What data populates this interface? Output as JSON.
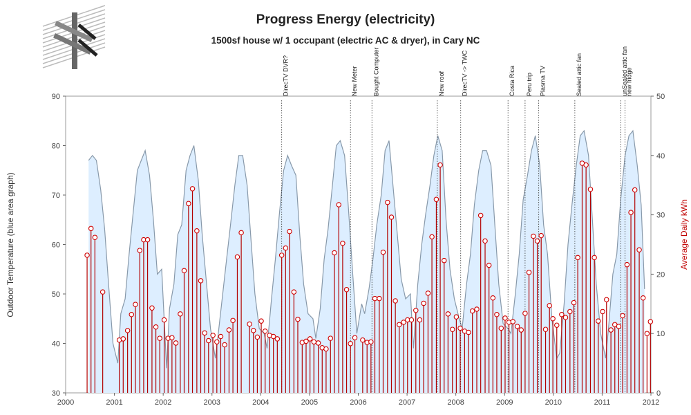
{
  "colors": {
    "temperature_fill": "#ddeeff",
    "temperature_line": "#8899aa",
    "kwh_stem": "#b30000",
    "kwh_marker": "#d00000",
    "axis": "#666666",
    "event_line": "#333333"
  },
  "chart_data": {
    "type": "area+stem",
    "title": "Progress Energy (electricity)",
    "subtitle": "1500sf house w/ 1 occupant (electric AC & dryer), in Cary NC",
    "xlabel": "",
    "ylabel_left": "Outdoor Temperature (blue area graph)",
    "ylabel_right": "Average Daily kWh",
    "xlim": [
      2000,
      2012
    ],
    "ylim_left": [
      30,
      90
    ],
    "ylim_right": [
      0,
      50
    ],
    "x_ticks": [
      "2000",
      "2001",
      "2002",
      "2003",
      "2004",
      "2005",
      "2006",
      "2007",
      "2008",
      "2009",
      "2010",
      "2011",
      "2012"
    ],
    "y_left_ticks": [
      "30",
      "40",
      "50",
      "60",
      "70",
      "80",
      "90"
    ],
    "y_right_ticks": [
      "0",
      "10",
      "20",
      "30",
      "40",
      "50"
    ],
    "grid": false,
    "series": [
      {
        "name": "Outdoor Temperature",
        "type": "area",
        "points": [
          [
            2000.47,
            77
          ],
          [
            2000.55,
            78
          ],
          [
            2000.63,
            77
          ],
          [
            2000.72,
            71
          ],
          [
            2000.8,
            63
          ],
          [
            2000.88,
            52
          ],
          [
            2000.97,
            40
          ],
          [
            2001.07,
            36
          ],
          [
            2001.13,
            46
          ],
          [
            2001.22,
            49
          ],
          [
            2001.3,
            58
          ],
          [
            2001.38,
            66
          ],
          [
            2001.47,
            75
          ],
          [
            2001.55,
            77
          ],
          [
            2001.63,
            79
          ],
          [
            2001.72,
            74
          ],
          [
            2001.8,
            65
          ],
          [
            2001.88,
            54
          ],
          [
            2001.97,
            55
          ],
          [
            2002.07,
            35
          ],
          [
            2002.13,
            47
          ],
          [
            2002.22,
            52
          ],
          [
            2002.3,
            62
          ],
          [
            2002.38,
            64
          ],
          [
            2002.47,
            75
          ],
          [
            2002.55,
            78
          ],
          [
            2002.63,
            80
          ],
          [
            2002.72,
            73
          ],
          [
            2002.8,
            62
          ],
          [
            2002.88,
            53
          ],
          [
            2002.97,
            43
          ],
          [
            2003.07,
            37
          ],
          [
            2003.13,
            42
          ],
          [
            2003.22,
            50
          ],
          [
            2003.3,
            57
          ],
          [
            2003.38,
            64
          ],
          [
            2003.47,
            72
          ],
          [
            2003.55,
            78
          ],
          [
            2003.63,
            78
          ],
          [
            2003.72,
            72
          ],
          [
            2003.8,
            61
          ],
          [
            2003.88,
            50
          ],
          [
            2003.97,
            43
          ],
          [
            2004.07,
            42
          ],
          [
            2004.13,
            39
          ],
          [
            2004.22,
            49
          ],
          [
            2004.3,
            57
          ],
          [
            2004.38,
            66
          ],
          [
            2004.47,
            75
          ],
          [
            2004.55,
            78
          ],
          [
            2004.63,
            76
          ],
          [
            2004.72,
            74
          ],
          [
            2004.8,
            62
          ],
          [
            2004.88,
            52
          ],
          [
            2004.97,
            46
          ],
          [
            2005.07,
            45
          ],
          [
            2005.13,
            41
          ],
          [
            2005.22,
            47
          ],
          [
            2005.3,
            57
          ],
          [
            2005.38,
            63
          ],
          [
            2005.47,
            72
          ],
          [
            2005.55,
            80
          ],
          [
            2005.63,
            81
          ],
          [
            2005.72,
            78
          ],
          [
            2005.8,
            67
          ],
          [
            2005.88,
            55
          ],
          [
            2005.97,
            42
          ],
          [
            2006.07,
            48
          ],
          [
            2006.13,
            46
          ],
          [
            2006.22,
            51
          ],
          [
            2006.3,
            57
          ],
          [
            2006.38,
            64
          ],
          [
            2006.47,
            70
          ],
          [
            2006.55,
            79
          ],
          [
            2006.63,
            81
          ],
          [
            2006.72,
            71
          ],
          [
            2006.8,
            62
          ],
          [
            2006.88,
            53
          ],
          [
            2006.97,
            49
          ],
          [
            2007.07,
            50
          ],
          [
            2007.13,
            39
          ],
          [
            2007.22,
            52
          ],
          [
            2007.3,
            60
          ],
          [
            2007.38,
            66
          ],
          [
            2007.47,
            72
          ],
          [
            2007.55,
            78
          ],
          [
            2007.63,
            82
          ],
          [
            2007.72,
            79
          ],
          [
            2007.8,
            65
          ],
          [
            2007.88,
            55
          ],
          [
            2007.97,
            49
          ],
          [
            2008.07,
            45
          ],
          [
            2008.13,
            43
          ],
          [
            2008.22,
            52
          ],
          [
            2008.3,
            58
          ],
          [
            2008.38,
            68
          ],
          [
            2008.47,
            75
          ],
          [
            2008.55,
            79
          ],
          [
            2008.63,
            79
          ],
          [
            2008.72,
            76
          ],
          [
            2008.8,
            64
          ],
          [
            2008.88,
            52
          ],
          [
            2008.97,
            44
          ],
          [
            2009.07,
            43
          ],
          [
            2009.13,
            42
          ],
          [
            2009.22,
            50
          ],
          [
            2009.3,
            58
          ],
          [
            2009.38,
            69
          ],
          [
            2009.47,
            74
          ],
          [
            2009.55,
            79
          ],
          [
            2009.63,
            82
          ],
          [
            2009.72,
            76
          ],
          [
            2009.8,
            64
          ],
          [
            2009.88,
            58
          ],
          [
            2009.97,
            45
          ],
          [
            2010.07,
            37
          ],
          [
            2010.13,
            38
          ],
          [
            2010.22,
            48
          ],
          [
            2010.3,
            60
          ],
          [
            2010.38,
            68
          ],
          [
            2010.47,
            76
          ],
          [
            2010.55,
            82
          ],
          [
            2010.63,
            83
          ],
          [
            2010.72,
            78
          ],
          [
            2010.8,
            65
          ],
          [
            2010.88,
            52
          ],
          [
            2010.97,
            42
          ],
          [
            2011.07,
            37
          ],
          [
            2011.13,
            43
          ],
          [
            2011.22,
            54
          ],
          [
            2011.3,
            58
          ],
          [
            2011.38,
            69
          ],
          [
            2011.47,
            78
          ],
          [
            2011.55,
            82
          ],
          [
            2011.63,
            83
          ],
          [
            2011.72,
            76
          ],
          [
            2011.8,
            68
          ],
          [
            2011.87,
            51
          ]
        ]
      },
      {
        "name": "Average Daily kWh",
        "type": "stem",
        "points": [
          [
            2000.44,
            23.2
          ],
          [
            2000.52,
            27.7
          ],
          [
            2000.6,
            26.2
          ],
          [
            2000.76,
            17
          ],
          [
            2001.1,
            8.9
          ],
          [
            2001.18,
            9.1
          ],
          [
            2001.27,
            10.5
          ],
          [
            2001.35,
            13.2
          ],
          [
            2001.43,
            14.9
          ],
          [
            2001.52,
            24.0
          ],
          [
            2001.6,
            25.8
          ],
          [
            2001.68,
            25.8
          ],
          [
            2001.77,
            14.3
          ],
          [
            2001.85,
            11.1
          ],
          [
            2001.93,
            9.2
          ],
          [
            2002.02,
            12.3
          ],
          [
            2002.1,
            9.2
          ],
          [
            2002.18,
            9.3
          ],
          [
            2002.26,
            8.4
          ],
          [
            2002.35,
            13.3
          ],
          [
            2002.43,
            20.6
          ],
          [
            2002.52,
            31.9
          ],
          [
            2002.6,
            34.4
          ],
          [
            2002.69,
            27.3
          ],
          [
            2002.77,
            18.9
          ],
          [
            2002.85,
            10.1
          ],
          [
            2002.93,
            8.8
          ],
          [
            2003.02,
            9.7
          ],
          [
            2003.1,
            8.6
          ],
          [
            2003.18,
            9.5
          ],
          [
            2003.26,
            8.1
          ],
          [
            2003.35,
            10.6
          ],
          [
            2003.43,
            12.2
          ],
          [
            2003.52,
            22.9
          ],
          [
            2003.6,
            27.0
          ],
          [
            2003.77,
            11.6
          ],
          [
            2003.85,
            10.5
          ],
          [
            2003.93,
            9.4
          ],
          [
            2004.01,
            12.1
          ],
          [
            2004.09,
            10.4
          ],
          [
            2004.18,
            9.7
          ],
          [
            2004.26,
            9.5
          ],
          [
            2004.34,
            9.1
          ],
          [
            2004.43,
            23.2
          ],
          [
            2004.51,
            24.4
          ],
          [
            2004.59,
            27.2
          ],
          [
            2004.68,
            17.0
          ],
          [
            2004.76,
            12.4
          ],
          [
            2004.85,
            8.5
          ],
          [
            2004.93,
            8.7
          ],
          [
            2005.01,
            9.1
          ],
          [
            2005.09,
            8.6
          ],
          [
            2005.18,
            8.4
          ],
          [
            2005.26,
            7.6
          ],
          [
            2005.34,
            7.4
          ],
          [
            2005.43,
            9.2
          ],
          [
            2005.51,
            23.6
          ],
          [
            2005.6,
            31.7
          ],
          [
            2005.68,
            25.2
          ],
          [
            2005.76,
            17.4
          ],
          [
            2005.84,
            8.3
          ],
          [
            2005.93,
            9.3
          ],
          [
            2006.09,
            8.9
          ],
          [
            2006.18,
            8.5
          ],
          [
            2006.26,
            8.6
          ],
          [
            2006.34,
            15.9
          ],
          [
            2006.43,
            15.9
          ],
          [
            2006.51,
            23.7
          ],
          [
            2006.6,
            32.1
          ],
          [
            2006.68,
            29.6
          ],
          [
            2006.76,
            15.5
          ],
          [
            2006.84,
            11.5
          ],
          [
            2006.93,
            11.9
          ],
          [
            2007.01,
            12.3
          ],
          [
            2007.09,
            12.3
          ],
          [
            2007.18,
            13.9
          ],
          [
            2007.26,
            12.3
          ],
          [
            2007.34,
            15.1
          ],
          [
            2007.43,
            16.8
          ],
          [
            2007.51,
            26.3
          ],
          [
            2007.6,
            32.6
          ],
          [
            2007.68,
            38.4
          ],
          [
            2007.76,
            22.3
          ],
          [
            2007.84,
            13.3
          ],
          [
            2007.93,
            10.7
          ],
          [
            2008.01,
            12.8
          ],
          [
            2008.09,
            10.9
          ],
          [
            2008.18,
            10.4
          ],
          [
            2008.26,
            10.2
          ],
          [
            2008.34,
            13.8
          ],
          [
            2008.43,
            14.1
          ],
          [
            2008.51,
            29.9
          ],
          [
            2008.6,
            25.6
          ],
          [
            2008.68,
            21.5
          ],
          [
            2008.76,
            16.0
          ],
          [
            2008.84,
            13.2
          ],
          [
            2008.93,
            10.9
          ],
          [
            2009.01,
            12.6
          ],
          [
            2009.09,
            11.9
          ],
          [
            2009.17,
            12.0
          ],
          [
            2009.26,
            11.2
          ],
          [
            2009.34,
            10.6
          ],
          [
            2009.42,
            13.4
          ],
          [
            2009.5,
            20.3
          ],
          [
            2009.59,
            26.4
          ],
          [
            2009.67,
            25.6
          ],
          [
            2009.75,
            26.5
          ],
          [
            2009.84,
            10.7
          ],
          [
            2009.92,
            14.7
          ],
          [
            2009.99,
            12.5
          ],
          [
            2010.07,
            11.4
          ],
          [
            2010.17,
            13.2
          ],
          [
            2010.25,
            12.7
          ],
          [
            2010.34,
            13.7
          ],
          [
            2010.42,
            15.2
          ],
          [
            2010.5,
            22.8
          ],
          [
            2010.59,
            38.7
          ],
          [
            2010.67,
            38.4
          ],
          [
            2010.76,
            34.3
          ],
          [
            2010.84,
            22.8
          ],
          [
            2010.92,
            12.1
          ],
          [
            2011.01,
            13.7
          ],
          [
            2011.09,
            15.7
          ],
          [
            2011.18,
            10.6
          ],
          [
            2011.26,
            11.5
          ],
          [
            2011.34,
            11.2
          ],
          [
            2011.42,
            13.0
          ],
          [
            2011.51,
            21.6
          ],
          [
            2011.59,
            30.4
          ],
          [
            2011.67,
            34.2
          ],
          [
            2011.76,
            24.1
          ],
          [
            2011.84,
            16.0
          ],
          [
            2011.92,
            10.0
          ],
          [
            2011.99,
            12.0
          ]
        ]
      }
    ],
    "events": [
      {
        "x": 2004.43,
        "label": "DirecTV DVR?"
      },
      {
        "x": 2005.84,
        "label": "New Meter"
      },
      {
        "x": 2006.28,
        "label": "Bought Computer"
      },
      {
        "x": 2007.62,
        "label": "New roof"
      },
      {
        "x": 2008.1,
        "label": "DirecTV -> TWC"
      },
      {
        "x": 2009.07,
        "label": "Costa Rica"
      },
      {
        "x": 2009.42,
        "label": "Peru trip"
      },
      {
        "x": 2009.7,
        "label": "Plasma TV"
      },
      {
        "x": 2010.44,
        "label": "Sealed attic fan"
      },
      {
        "x": 2011.38,
        "label": "unSealed attic fan"
      },
      {
        "x": 2011.47,
        "label": "new fridge"
      }
    ]
  }
}
